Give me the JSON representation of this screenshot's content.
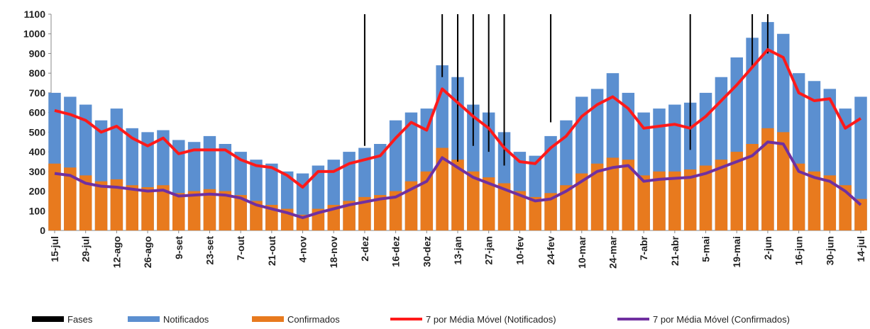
{
  "chart_data": {
    "type": "bar",
    "categories": [
      "15-jul",
      null,
      "29-jul",
      null,
      "12-ago",
      null,
      "26-ago",
      null,
      "9-set",
      null,
      "23-set",
      null,
      "7-out",
      null,
      "21-out",
      null,
      "4-nov",
      null,
      "18-nov",
      null,
      "2-dez",
      null,
      "16-dez",
      null,
      "30-dez",
      null,
      "13-jan",
      null,
      "27-jan",
      null,
      "10-fev",
      null,
      "24-fev",
      null,
      "10-mar",
      null,
      "24-mar",
      null,
      "7-abr",
      null,
      "21-abr",
      null,
      "5-mai",
      null,
      "19-mai",
      null,
      "2-jun",
      null,
      "16-jun",
      null,
      "30-jun",
      null,
      "14-jul"
    ],
    "ylim": [
      0,
      1100
    ],
    "yticks": [
      0,
      100,
      200,
      300,
      400,
      500,
      600,
      700,
      800,
      900,
      1000,
      1100
    ],
    "series": [
      {
        "name": "Fases",
        "type": "vline",
        "color": "#000000",
        "values": [
          null,
          null,
          null,
          null,
          null,
          null,
          null,
          null,
          null,
          null,
          null,
          null,
          null,
          null,
          null,
          null,
          null,
          null,
          null,
          null,
          430,
          null,
          null,
          null,
          null,
          780,
          350,
          430,
          400,
          330,
          null,
          null,
          550,
          null,
          null,
          null,
          null,
          null,
          null,
          null,
          null,
          410,
          null,
          null,
          null,
          830,
          900,
          null,
          null,
          null,
          null,
          null,
          null
        ]
      },
      {
        "name": "Notificados",
        "type": "bar",
        "color": "#5b8fd0",
        "values": [
          700,
          680,
          640,
          560,
          620,
          520,
          500,
          510,
          460,
          450,
          480,
          440,
          400,
          360,
          340,
          300,
          290,
          330,
          360,
          400,
          420,
          440,
          560,
          600,
          620,
          840,
          780,
          640,
          600,
          500,
          400,
          380,
          480,
          560,
          680,
          720,
          800,
          700,
          600,
          620,
          640,
          650,
          700,
          780,
          880,
          980,
          1060,
          1000,
          800,
          760,
          720,
          620,
          680
        ]
      },
      {
        "name": "Confirmados",
        "type": "bar",
        "color": "#e87a1e",
        "values": [
          340,
          320,
          280,
          250,
          260,
          230,
          220,
          230,
          190,
          200,
          210,
          200,
          180,
          150,
          130,
          110,
          80,
          110,
          130,
          150,
          170,
          180,
          200,
          250,
          300,
          420,
          360,
          300,
          270,
          240,
          200,
          170,
          190,
          230,
          290,
          340,
          370,
          360,
          280,
          300,
          300,
          310,
          330,
          360,
          400,
          440,
          520,
          500,
          340,
          300,
          280,
          230,
          160
        ]
      },
      {
        "name": "7 por Média Móvel (Notificados)",
        "type": "line",
        "color": "#ff1a1a",
        "values": [
          610,
          590,
          560,
          500,
          530,
          470,
          430,
          470,
          390,
          410,
          410,
          410,
          360,
          330,
          320,
          280,
          220,
          300,
          300,
          340,
          360,
          380,
          470,
          550,
          510,
          720,
          650,
          580,
          520,
          420,
          350,
          340,
          420,
          480,
          580,
          640,
          680,
          620,
          520,
          530,
          540,
          520,
          580,
          660,
          740,
          830,
          920,
          880,
          700,
          660,
          670,
          520,
          570
        ]
      },
      {
        "name": "7 por Média Móvel (Confirmados)",
        "type": "line",
        "color": "#7030a0",
        "values": [
          290,
          280,
          240,
          225,
          220,
          210,
          200,
          205,
          175,
          180,
          185,
          180,
          165,
          130,
          110,
          90,
          65,
          90,
          110,
          130,
          145,
          160,
          170,
          210,
          250,
          370,
          320,
          270,
          240,
          210,
          180,
          150,
          160,
          200,
          250,
          300,
          320,
          330,
          250,
          260,
          265,
          270,
          290,
          320,
          350,
          380,
          450,
          440,
          300,
          270,
          250,
          200,
          130
        ]
      }
    ]
  }
}
